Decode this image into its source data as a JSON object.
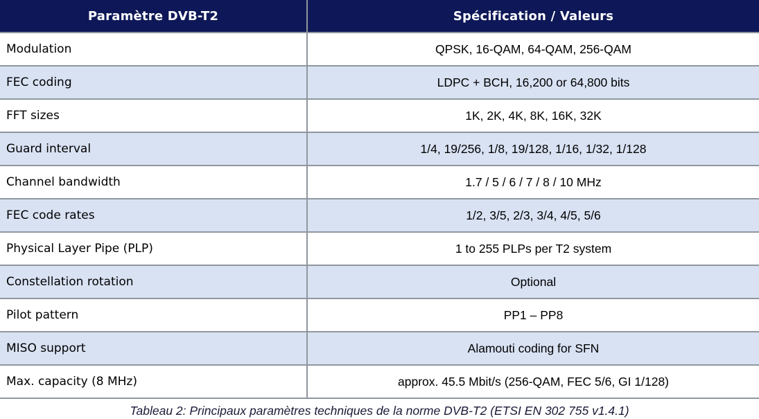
{
  "table": {
    "headers": {
      "parameter": "Paramètre DVB-T2",
      "specification": "Spécification / Valeurs"
    },
    "rows": [
      {
        "param": "Modulation",
        "value": "QPSK, 16-QAM, 64-QAM, 256-QAM"
      },
      {
        "param": "FEC coding",
        "value": "LDPC + BCH, 16,200 or 64,800 bits"
      },
      {
        "param": "FFT sizes",
        "value": "1K, 2K, 4K, 8K, 16K, 32K"
      },
      {
        "param": "Guard interval",
        "value": "1/4, 19/256, 1/8, 19/128, 1/16, 1/32, 1/128"
      },
      {
        "param": "Channel bandwidth",
        "value": "1.7 / 5 / 6 / 7 / 8 / 10 MHz"
      },
      {
        "param": "FEC code rates",
        "value": "1/2, 3/5, 2/3, 3/4, 4/5, 5/6"
      },
      {
        "param": "Physical Layer Pipe (PLP)",
        "value": "1 to 255 PLPs per T2 system"
      },
      {
        "param": "Constellation rotation",
        "value": "Optional"
      },
      {
        "param": "Pilot pattern",
        "value": "PP1 – PP8"
      },
      {
        "param": "MISO support",
        "value": "Alamouti coding for SFN"
      },
      {
        "param": "Max. capacity (8 MHz)",
        "value": "approx. 45.5 Mbit/s (256-QAM, FEC 5/6, GI 1/128)"
      }
    ]
  },
  "caption": "Tableau 2: Principaux paramètres techniques de la norme DVB-T2 (ETSI EN 302 755 v1.4.1)",
  "colors": {
    "header_bg": "#0E1858",
    "header_text": "#FFFFFF",
    "row_alt_bg": "#D9E2F3",
    "border": "#8F969E",
    "caption_text": "#1A1A38"
  }
}
